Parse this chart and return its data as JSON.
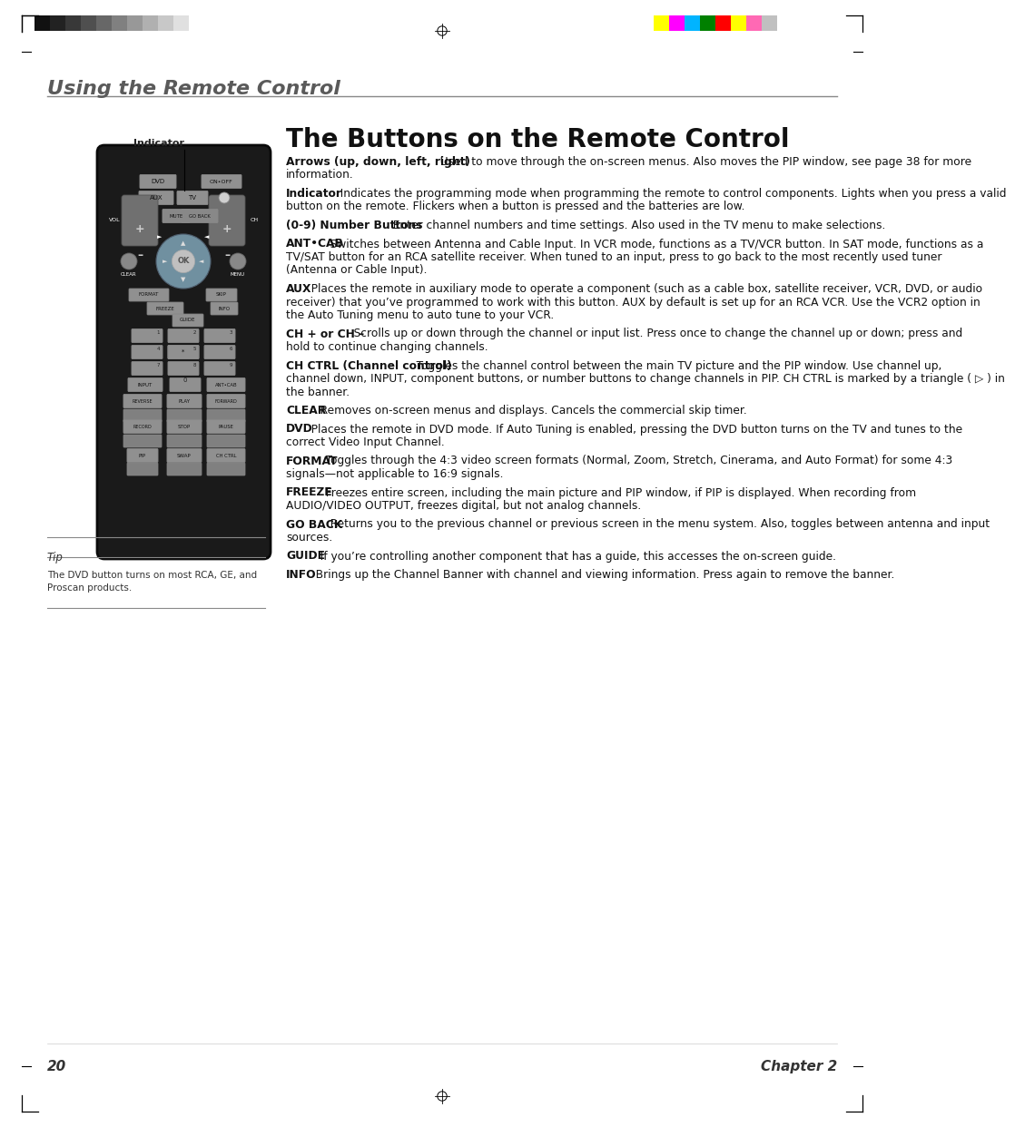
{
  "page_bg": "#ffffff",
  "section_title": "Using the Remote Control",
  "section_title_color": "#5a5a5a",
  "main_title": "The Buttons on the Remote Control",
  "page_number": "20",
  "chapter": "Chapter 2",
  "tip_label": "Tip",
  "tip_text": "The DVD button turns on most RCA, GE, and\nProscan products.",
  "indicator_label": "Indicator",
  "body_paragraphs": [
    {
      "bold": "Arrows (up, down, left, right)",
      "text": "   Used to move through the on-screen menus. Also moves the PIP window, see page 38 for more information."
    },
    {
      "bold": "Indicator",
      "text": "   Indicates the programming mode when programming the remote to control components. Lights when you press a valid button on the remote. Flickers when a button is pressed and the batteries are low."
    },
    {
      "bold": "(0-9) Number Buttons",
      "text": "   Enter channel numbers and time settings. Also used in the TV menu to make selections."
    },
    {
      "bold": "ANT•CAB",
      "text": "   Switches between Antenna and Cable Input. In VCR mode, functions as a TV/VCR button. In SAT mode, functions as a TV/SAT button for an RCA satellite receiver. When tuned to an input, press to go back to the most recently used tuner (Antenna or Cable Input)."
    },
    {
      "bold": "AUX",
      "text": "   Places the remote in auxiliary mode to operate a component (such as a cable box, satellite receiver, VCR, DVD, or audio receiver) that you’ve programmed to work with this button. AUX by default is set up for an RCA VCR. Use the VCR2 option in the Auto Tuning menu to auto tune to your VCR."
    },
    {
      "bold": "CH + or CH –",
      "text": "   Scrolls up or down through the channel or input list. Press once to change the channel up or down; press and hold to continue changing channels."
    },
    {
      "bold": "CH CTRL (Channel control)",
      "text": "   Toggles the channel control between the main TV picture and the PIP window. Use channel up, channel down, INPUT, component buttons, or number buttons to change channels in PIP. CH CTRL is marked by a triangle ( ▷ ) in the banner."
    },
    {
      "bold": "CLEAR",
      "text": "   Removes on-screen menus and displays. Cancels the commercial skip timer."
    },
    {
      "bold": "DVD",
      "text": "   Places the remote in DVD mode. If Auto Tuning is enabled, pressing the DVD button turns on the TV and tunes to the correct Video Input Channel."
    },
    {
      "bold": "FORMAT",
      "text": "   Toggles through the 4:3 video screen formats (Normal, Zoom, Stretch, Cinerama, and Auto Format) for some 4:3 signals—not applicable to 16:9 signals."
    },
    {
      "bold": "FREEZE",
      "text": "   Freezes entire screen, including the main picture and PIP window, if PIP is displayed. When recording from AUDIO/VIDEO OUTPUT, freezes digital, but not analog channels."
    },
    {
      "bold": "GO BACK",
      "text": "   Returns you to the previous channel or previous screen in the menu system. Also, toggles between antenna and input sources."
    },
    {
      "bold": "GUIDE",
      "text": "   If you’re controlling another component that has a guide, this accesses the on-screen guide."
    },
    {
      "bold": "INFO",
      "text": "   Brings up the Channel Banner with channel and viewing information. Press again to remove the banner."
    }
  ],
  "grayscale_colors": [
    "#111111",
    "#222222",
    "#383838",
    "#4f4f4f",
    "#676767",
    "#808080",
    "#989898",
    "#b0b0b0",
    "#c8c8c8",
    "#e0e0e0"
  ],
  "color_bars": [
    "#ffff00",
    "#ff00ff",
    "#00b4ff",
    "#008000",
    "#ff0000",
    "#ffff00",
    "#ff69b4",
    "#c0c0c0"
  ],
  "remote_body": "#1a1a1a",
  "remote_edge": "#0a0a0a",
  "btn_color": "#a0a0a0",
  "btn_edge": "#888888",
  "btn_text": "#111111",
  "ok_center": "#c0c0c0",
  "ok_ring": "#7090a0"
}
